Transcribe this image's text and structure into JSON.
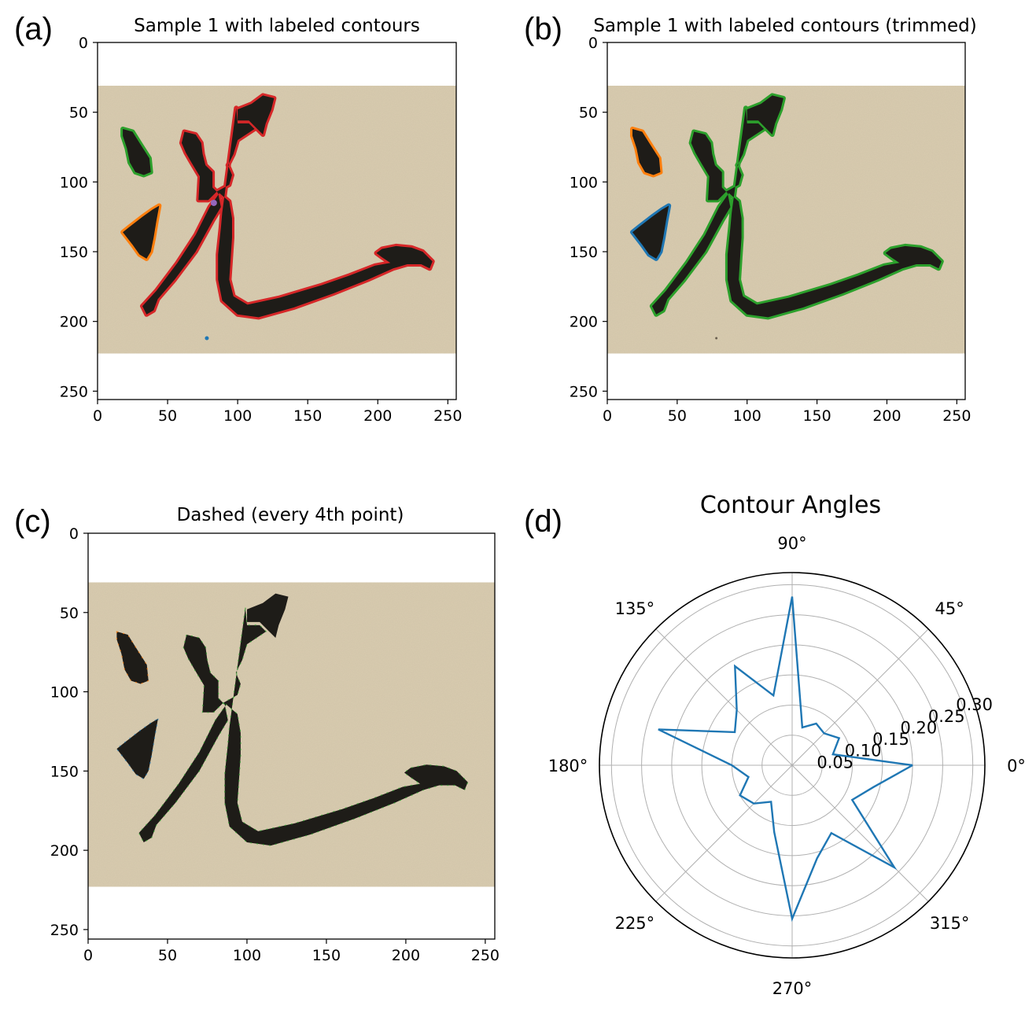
{
  "panels": [
    {
      "label": "(a)",
      "title": "Sample 1 with labeled contours"
    },
    {
      "label": "(b)",
      "title": "Sample 1 with labeled contours (trimmed)"
    },
    {
      "label": "(c)",
      "title": "Dashed (every 4th point)"
    },
    {
      "label": "(d)",
      "title": "Contour Angles"
    }
  ],
  "colors": {
    "paper": "#d9ccb0",
    "ink": "#1e1c18",
    "blue": "#1f77b4",
    "orange": "#ff7f0e",
    "green": "#2ca02c",
    "red": "#d62728",
    "purple": "#9467bd"
  },
  "chart_data": [
    {
      "type": "image",
      "panel": "a",
      "title": "Sample 1 with labeled contours",
      "xlim": [
        0,
        255
      ],
      "ylim": [
        255,
        0
      ],
      "xticks": [
        0,
        50,
        100,
        150,
        200,
        250
      ],
      "yticks": [
        0,
        50,
        100,
        150,
        200,
        250
      ],
      "paper_rows": [
        31,
        223
      ],
      "contours": [
        {
          "color": "red",
          "region": "main stroke"
        },
        {
          "color": "green",
          "region": "upper dot"
        },
        {
          "color": "orange",
          "region": "lower dot"
        },
        {
          "color": "purple",
          "region": "small fragment"
        },
        {
          "color": "blue",
          "region": "speck"
        }
      ]
    },
    {
      "type": "image",
      "panel": "b",
      "title": "Sample 1 with labeled contours (trimmed)",
      "xlim": [
        0,
        255
      ],
      "ylim": [
        255,
        0
      ],
      "xticks": [
        0,
        50,
        100,
        150,
        200,
        250
      ],
      "yticks": [
        0,
        50,
        100,
        150,
        200,
        250
      ],
      "paper_rows": [
        31,
        223
      ],
      "contours": [
        {
          "color": "green",
          "region": "main stroke"
        },
        {
          "color": "orange",
          "region": "upper dot"
        },
        {
          "color": "blue",
          "region": "lower dot"
        }
      ]
    },
    {
      "type": "image",
      "panel": "c",
      "title": "Dashed (every 4th point)",
      "xlim": [
        0,
        255
      ],
      "ylim": [
        255,
        0
      ],
      "xticks": [
        0,
        50,
        100,
        150,
        200,
        250
      ],
      "yticks": [
        0,
        50,
        100,
        150,
        200,
        250
      ],
      "paper_rows": [
        31,
        223
      ]
    },
    {
      "type": "polar",
      "panel": "d",
      "title": "Contour Angles",
      "theta_ticks_deg": [
        0,
        45,
        90,
        135,
        180,
        225,
        270,
        315
      ],
      "r_ticks": [
        0.05,
        0.1,
        0.15,
        0.2,
        0.25,
        0.3
      ],
      "r_tick_labels": [
        "0.05",
        "0.10",
        "0.15",
        "0.20",
        "0.25",
        "0.30"
      ],
      "rmax": 0.32,
      "grid": true,
      "series": [
        {
          "color": "blue",
          "theta_deg": [
            0,
            15,
            30,
            45,
            60,
            75,
            90,
            105,
            120,
            135,
            150,
            165,
            180,
            195,
            210,
            225,
            240,
            255,
            270,
            285,
            300,
            315,
            330,
            345
          ],
          "r": [
            0.2,
            0.07,
            0.09,
            0.075,
            0.08,
            0.065,
            0.28,
            0.12,
            0.19,
            0.13,
            0.11,
            0.23,
            0.1,
            0.075,
            0.1,
            0.09,
            0.07,
            0.115,
            0.255,
            0.16,
            0.13,
            0.24,
            0.115,
            0.14
          ]
        }
      ]
    }
  ]
}
